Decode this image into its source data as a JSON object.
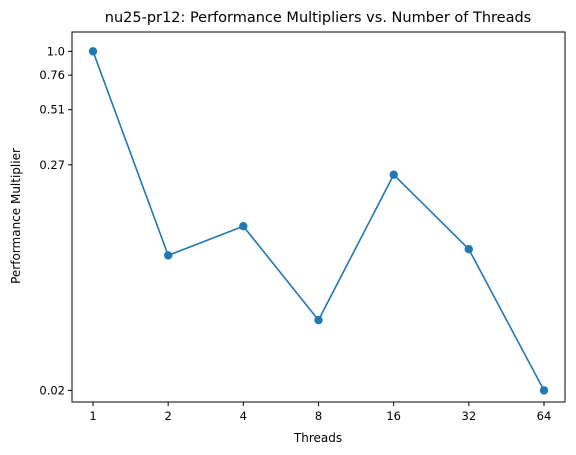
{
  "chart_data": {
    "type": "line",
    "title": "nu25-pr12: Performance Multipliers vs. Number of Threads",
    "xlabel": "Threads",
    "ylabel": "Performance Multiplier",
    "x_tick_labels": [
      "1",
      "2",
      "4",
      "8",
      "16",
      "32",
      "64"
    ],
    "y_ticks": [
      {
        "value": 1.0,
        "label": "1.0"
      },
      {
        "value": 0.76,
        "label": "0.76"
      },
      {
        "value": 0.51,
        "label": "0.51"
      },
      {
        "value": 0.27,
        "label": "0.27"
      },
      {
        "value": 0.02,
        "label": "0.02"
      }
    ],
    "y_scale": "log",
    "ylim": [
      0.0175,
      1.25
    ],
    "grid": false,
    "legend": "none",
    "series": [
      {
        "color": "#1f77b4",
        "x": [
          "1",
          "2",
          "4",
          "8",
          "16",
          "32",
          "64"
        ],
        "y": [
          1.0,
          0.095,
          0.133,
          0.045,
          0.241,
          0.102,
          0.02
        ]
      }
    ]
  }
}
